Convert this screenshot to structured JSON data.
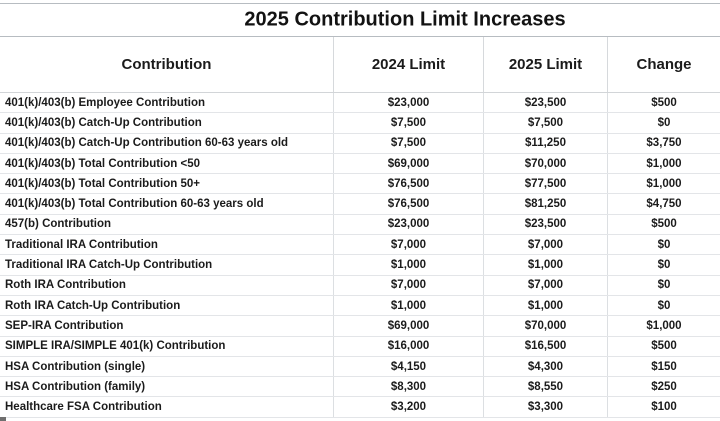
{
  "title": "2025 Contribution Limit Increases",
  "chart_data": {
    "type": "table",
    "title": "2025 Contribution Limit Increases",
    "columns": [
      "Contribution",
      "2024 Limit",
      "2025 Limit",
      "Change"
    ],
    "rows": [
      [
        "401(k)/403(b) Employee Contribution",
        "$23,000",
        "$23,500",
        "$500"
      ],
      [
        "401(k)/403(b) Catch-Up Contribution",
        "$7,500",
        "$7,500",
        "$0"
      ],
      [
        "401(k)/403(b) Catch-Up Contribution 60-63 years old",
        "$7,500",
        "$11,250",
        "$3,750"
      ],
      [
        "401(k)/403(b) Total Contribution <50",
        "$69,000",
        "$70,000",
        "$1,000"
      ],
      [
        "401(k)/403(b) Total Contribution 50+",
        "$76,500",
        "$77,500",
        "$1,000"
      ],
      [
        "401(k)/403(b) Total Contribution 60-63 years old",
        "$76,500",
        "$81,250",
        "$4,750"
      ],
      [
        "457(b) Contribution",
        "$23,000",
        "$23,500",
        "$500"
      ],
      [
        "Traditional IRA Contribution",
        "$7,000",
        "$7,000",
        "$0"
      ],
      [
        "Traditional IRA Catch-Up Contribution",
        "$1,000",
        "$1,000",
        "$0"
      ],
      [
        "Roth IRA Contribution",
        "$7,000",
        "$7,000",
        "$0"
      ],
      [
        "Roth IRA Catch-Up Contribution",
        "$1,000",
        "$1,000",
        "$0"
      ],
      [
        "SEP-IRA Contribution",
        "$69,000",
        "$70,000",
        "$1,000"
      ],
      [
        "SIMPLE IRA/SIMPLE 401(k) Contribution",
        "$16,000",
        "$16,500",
        "$500"
      ],
      [
        "HSA Contribution (single)",
        "$4,150",
        "$4,300",
        "$150"
      ],
      [
        "HSA Contribution (family)",
        "$8,300",
        "$8,550",
        "$250"
      ],
      [
        "Healthcare FSA Contribution",
        "$3,200",
        "$3,300",
        "$100"
      ]
    ],
    "layout": {
      "grid": "on",
      "header_alignment": "center",
      "label_column_alignment": "left",
      "value_columns_alignment": "center"
    }
  },
  "colors": {
    "background": "#ffffff",
    "text": "#1b1b1b",
    "row_gridline": "#e3e5e8",
    "column_gridline": "#d6d9dc",
    "title_border": "#b7bcc1"
  }
}
